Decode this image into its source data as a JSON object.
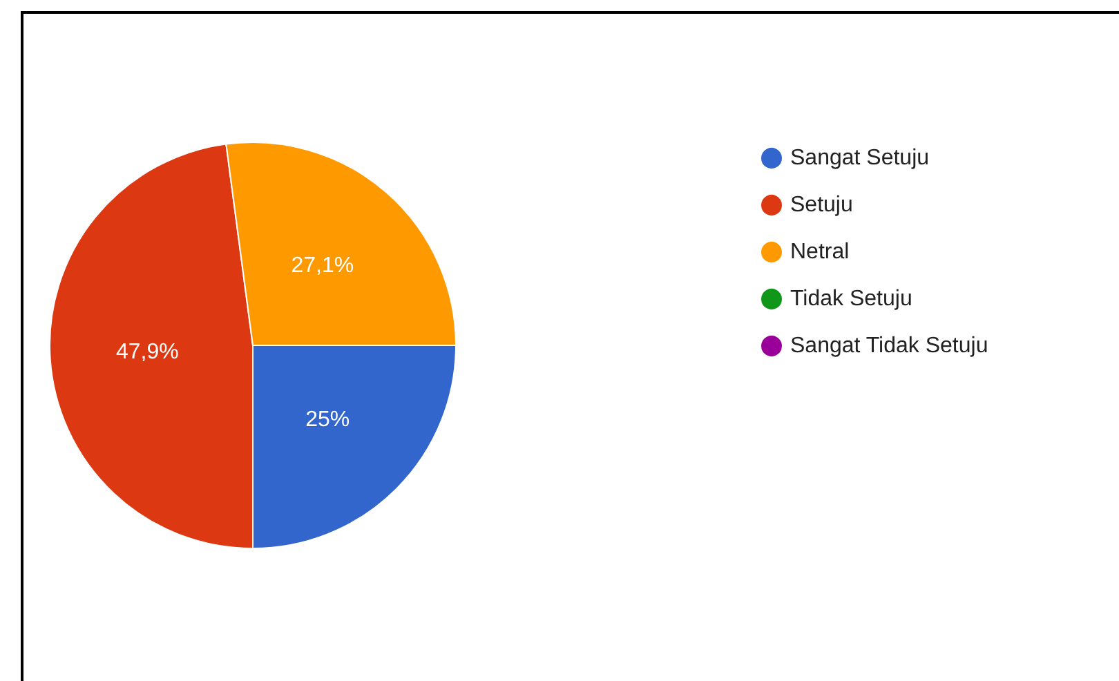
{
  "chart_data": {
    "type": "pie",
    "categories": [
      "Sangat Setuju",
      "Setuju",
      "Netral",
      "Tidak Setuju",
      "Sangat Tidak Setuju"
    ],
    "values": [
      25,
      47.9,
      27.1,
      0,
      0
    ],
    "colors": [
      "#3366cc",
      "#dc3912",
      "#ff9900",
      "#109618",
      "#990099"
    ],
    "value_labels": [
      "25%",
      "47,9%",
      "27,1%",
      null,
      null
    ],
    "legend": "top right"
  }
}
